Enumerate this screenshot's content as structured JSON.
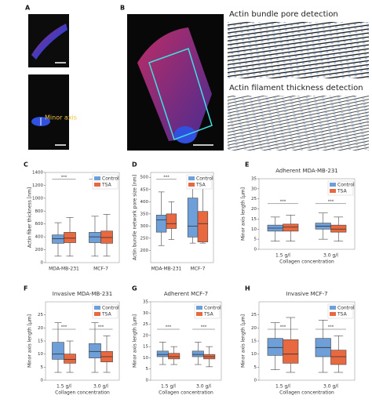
{
  "figure": {
    "panels": [
      "A",
      "B"
    ],
    "minor_axis_label": "Minor axis",
    "pore_title": "Actin bundle pore detection",
    "thickness_title": "Actin filament thickness detection"
  },
  "chart_data": [
    {
      "type": "box",
      "panel": "C",
      "ylabel": "Actin fiber thickness [nm]",
      "categories": [
        "MDA-MB-231",
        "MCF-7"
      ],
      "ylim": [
        0,
        1400
      ],
      "yticks": [
        0,
        200,
        400,
        600,
        800,
        1000,
        1200,
        1400
      ],
      "annotations": [
        "***",
        "***"
      ],
      "legend": "upper right",
      "series": [
        {
          "name": "Control",
          "color": "#6f9fd8",
          "values": [
            {
              "min": 100,
              "q1": 300,
              "median": 370,
              "q3": 430,
              "max": 620
            },
            {
              "min": 100,
              "q1": 310,
              "median": 400,
              "q3": 470,
              "max": 720
            }
          ]
        },
        {
          "name": "TSA",
          "color": "#e8683f",
          "values": [
            {
              "min": 100,
              "q1": 310,
              "median": 380,
              "q3": 470,
              "max": 700
            },
            {
              "min": 100,
              "q1": 300,
              "median": 390,
              "q3": 490,
              "max": 750
            }
          ]
        }
      ]
    },
    {
      "type": "box",
      "panel": "D",
      "ylabel": "Actin bundle network pore size [nm]",
      "categories": [
        "MDA-MB-231",
        "MCF-7"
      ],
      "ylim": [
        150,
        520
      ],
      "yticks": [
        200,
        250,
        300,
        350,
        400,
        450,
        500
      ],
      "annotations": [
        "***",
        "***"
      ],
      "legend": "upper right",
      "series": [
        {
          "name": "Control",
          "color": "#6f9fd8",
          "values": [
            {
              "min": 220,
              "q1": 275,
              "median": 325,
              "q3": 345,
              "max": 440
            },
            {
              "min": 230,
              "q1": 255,
              "median": 300,
              "q3": 415,
              "max": 500
            }
          ]
        },
        {
          "name": "TSA",
          "color": "#e8683f",
          "values": [
            {
              "min": 245,
              "q1": 290,
              "median": 310,
              "q3": 350,
              "max": 400
            },
            {
              "min": 230,
              "q1": 235,
              "median": 310,
              "q3": 360,
              "max": 470
            }
          ]
        }
      ]
    },
    {
      "type": "box",
      "panel": "E",
      "title": "Adherent MDA-MB-231",
      "ylabel": "Minor axis length [μm]",
      "xlabel": "Collagen concentration",
      "categories": [
        "1.5 g/l",
        "3.0 g/l"
      ],
      "ylim": [
        0,
        35
      ],
      "yticks": [
        0,
        5,
        10,
        15,
        20,
        25,
        30,
        35
      ],
      "annotations": [
        "***",
        "***"
      ],
      "legend": "upper right",
      "series": [
        {
          "name": "Control",
          "color": "#6f9fd8",
          "values": [
            {
              "min": 4,
              "q1": 9,
              "median": 10.5,
              "q3": 12,
              "max": 16
            },
            {
              "min": 5,
              "q1": 10,
              "median": 11.5,
              "q3": 13,
              "max": 18
            }
          ]
        },
        {
          "name": "TSA",
          "color": "#e8683f",
          "values": [
            {
              "min": 4,
              "q1": 9,
              "median": 11,
              "q3": 12.5,
              "max": 17
            },
            {
              "min": 4,
              "q1": 8.5,
              "median": 10,
              "q3": 12,
              "max": 16
            }
          ]
        }
      ]
    },
    {
      "type": "box",
      "panel": "F",
      "title": "Invasive MDA-MB-231",
      "ylabel": "Minor axis length [μm]",
      "xlabel": "Collagen concentration",
      "categories": [
        "1.5 g/l",
        "3.0 g/l"
      ],
      "ylim": [
        0,
        30
      ],
      "yticks": [
        0,
        5,
        10,
        15,
        20,
        25
      ],
      "annotations": [
        "***",
        "***"
      ],
      "legend": "upper right",
      "series": [
        {
          "name": "Control",
          "color": "#6f9fd8",
          "values": [
            {
              "min": 3,
              "q1": 8,
              "median": 10,
              "q3": 14.5,
              "max": 22
            },
            {
              "min": 3,
              "q1": 8.5,
              "median": 11,
              "q3": 14,
              "max": 22
            }
          ]
        },
        {
          "name": "TSA",
          "color": "#e8683f",
          "values": [
            {
              "min": 3,
              "q1": 6.5,
              "median": 8,
              "q3": 10,
              "max": 15
            },
            {
              "min": 3,
              "q1": 7,
              "median": 9,
              "q3": 11,
              "max": 17
            }
          ]
        }
      ]
    },
    {
      "type": "box",
      "panel": "G",
      "title": "Adherent MCF-7",
      "ylabel": "Minor axis length [μm]",
      "xlabel": "Collagen concentration",
      "categories": [
        "1.5 g/l",
        "3.0 g/l"
      ],
      "ylim": [
        0,
        35
      ],
      "yticks": [
        0,
        5,
        10,
        15,
        20,
        25,
        30,
        35
      ],
      "annotations": [
        "***",
        "***"
      ],
      "legend": "upper right",
      "series": [
        {
          "name": "Control",
          "color": "#6f9fd8",
          "values": [
            {
              "min": 7,
              "q1": 10.5,
              "median": 11.5,
              "q3": 13,
              "max": 17
            },
            {
              "min": 7,
              "q1": 10.5,
              "median": 11.5,
              "q3": 13,
              "max": 17
            }
          ]
        },
        {
          "name": "TSA",
          "color": "#e8683f",
          "values": [
            {
              "min": 7,
              "q1": 9.5,
              "median": 10.5,
              "q3": 12,
              "max": 15
            },
            {
              "min": 6,
              "q1": 9.5,
              "median": 10.5,
              "q3": 11.5,
              "max": 15
            }
          ]
        }
      ]
    },
    {
      "type": "box",
      "panel": "H",
      "title": "Invasive MCF-7",
      "ylabel": "Minor axis length [μm]",
      "xlabel": "Collagen concentration",
      "categories": [
        "1.5 g/l",
        "3.0 g/l"
      ],
      "ylim": [
        0,
        30
      ],
      "yticks": [
        0,
        5,
        10,
        15,
        20,
        25
      ],
      "annotations": [
        "***",
        "***"
      ],
      "legend": "upper right",
      "series": [
        {
          "name": "Control",
          "color": "#6f9fd8",
          "values": [
            {
              "min": 4,
              "q1": 9.5,
              "median": 12.5,
              "q3": 16,
              "max": 22
            },
            {
              "min": 3,
              "q1": 9,
              "median": 12.5,
              "q3": 16,
              "max": 23
            }
          ]
        },
        {
          "name": "TSA",
          "color": "#e8683f",
          "values": [
            {
              "min": 3,
              "q1": 6.5,
              "median": 10,
              "q3": 15.5,
              "max": 24
            },
            {
              "min": 3,
              "q1": 6,
              "median": 9,
              "q3": 11.5,
              "max": 17
            }
          ]
        }
      ]
    }
  ]
}
